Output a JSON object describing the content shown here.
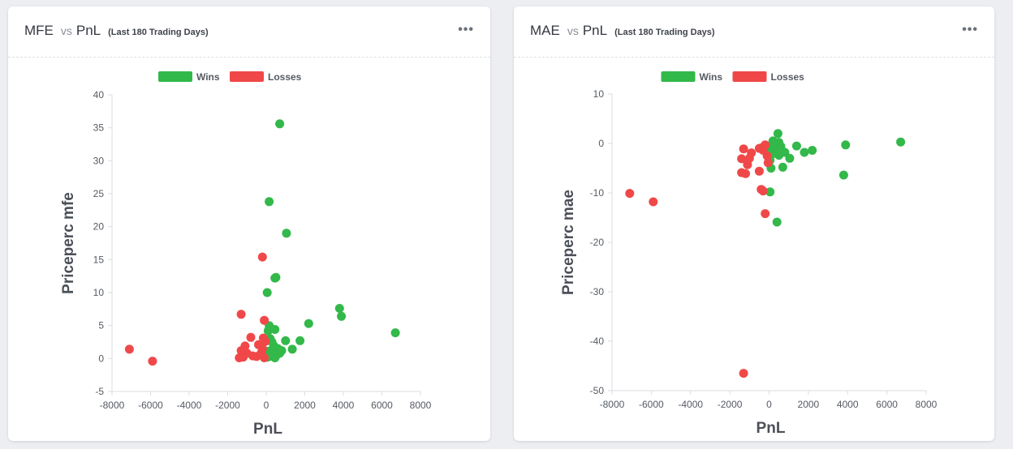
{
  "charts": [
    {
      "title_left": "MFE",
      "title_vs": "vs",
      "title_right": "PnL",
      "subtitle": "(Last 180 Trading Days)",
      "menu_icon": "ellipsis-icon"
    },
    {
      "title_left": "MAE",
      "title_vs": "vs",
      "title_right": "PnL",
      "subtitle": "(Last 180 Trading Days)",
      "menu_icon": "ellipsis-icon"
    }
  ],
  "colors": {
    "wins": "#33b84a",
    "losses": "#f04848",
    "axis": "#dadde1",
    "text": "#555a63"
  },
  "chart_data": [
    {
      "type": "scatter",
      "title": "MFE vs PnL",
      "xlabel": "PnL",
      "ylabel": "Priceperc mfe",
      "xlim": [
        -8000,
        8000
      ],
      "ylim": [
        -5,
        40
      ],
      "xticks": [
        -8000,
        -6000,
        -4000,
        -2000,
        0,
        2000,
        4000,
        6000,
        8000
      ],
      "yticks": [
        -5,
        0,
        5,
        10,
        15,
        20,
        25,
        30,
        35,
        40
      ],
      "grid": false,
      "legend_position": "top-center",
      "series": [
        {
          "name": "Wins",
          "points": [
            [
              700,
              35.6
            ],
            [
              150,
              23.8
            ],
            [
              1050,
              19.0
            ],
            [
              450,
              12.2
            ],
            [
              500,
              12.3
            ],
            [
              50,
              10.0
            ],
            [
              3800,
              7.6
            ],
            [
              3900,
              6.4
            ],
            [
              6700,
              3.9
            ],
            [
              2200,
              5.3
            ],
            [
              150,
              5.0
            ],
            [
              100,
              4.2
            ],
            [
              450,
              4.4
            ],
            [
              1000,
              2.7
            ],
            [
              1750,
              2.7
            ],
            [
              1350,
              1.4
            ],
            [
              800,
              1.2
            ],
            [
              600,
              1.5
            ],
            [
              400,
              1.9
            ],
            [
              300,
              2.5
            ],
            [
              200,
              3.0
            ],
            [
              250,
              0.6
            ],
            [
              350,
              0.9
            ],
            [
              150,
              0.3
            ],
            [
              500,
              0.4
            ],
            [
              700,
              0.8
            ],
            [
              100,
              1.1
            ],
            [
              50,
              0.2
            ],
            [
              300,
              1.3
            ],
            [
              450,
              0.1
            ]
          ]
        },
        {
          "name": "Losses",
          "points": [
            [
              -7100,
              1.4
            ],
            [
              -5900,
              -0.4
            ],
            [
              -1300,
              6.7
            ],
            [
              -200,
              15.4
            ],
            [
              -100,
              5.8
            ],
            [
              -800,
              3.2
            ],
            [
              -1100,
              1.9
            ],
            [
              -1300,
              1.2
            ],
            [
              -1000,
              0.8
            ],
            [
              -1400,
              0.1
            ],
            [
              -1200,
              0.2
            ],
            [
              -700,
              0.4
            ],
            [
              -500,
              0.3
            ],
            [
              -300,
              0.6
            ],
            [
              -400,
              2.1
            ],
            [
              -200,
              1.5
            ],
            [
              -150,
              3.1
            ],
            [
              -50,
              2.6
            ],
            [
              -100,
              0.1
            ],
            [
              -250,
              0.9
            ]
          ]
        }
      ]
    },
    {
      "type": "scatter",
      "title": "MAE vs PnL",
      "xlabel": "PnL",
      "ylabel": "Priceperc mae",
      "xlim": [
        -8000,
        8000
      ],
      "ylim": [
        -50,
        10
      ],
      "xticks": [
        -8000,
        -6000,
        -4000,
        -2000,
        0,
        2000,
        4000,
        6000,
        8000
      ],
      "yticks": [
        -50,
        -40,
        -30,
        -20,
        -10,
        0,
        10
      ],
      "grid": false,
      "legend_position": "top-center",
      "series": [
        {
          "name": "Wins",
          "points": [
            [
              6700,
              0.3
            ],
            [
              3900,
              -0.3
            ],
            [
              3800,
              -6.4
            ],
            [
              2200,
              -1.4
            ],
            [
              1800,
              -1.8
            ],
            [
              1400,
              -0.5
            ],
            [
              1050,
              -3.0
            ],
            [
              800,
              -1.8
            ],
            [
              700,
              -4.8
            ],
            [
              500,
              -2.4
            ],
            [
              450,
              2.0
            ],
            [
              400,
              -15.9
            ],
            [
              300,
              -0.7
            ],
            [
              200,
              0.5
            ],
            [
              150,
              -0.2
            ],
            [
              100,
              -1.3
            ],
            [
              100,
              -5.0
            ],
            [
              50,
              -9.8
            ],
            [
              50,
              -3.4
            ],
            [
              600,
              -0.6
            ],
            [
              350,
              -1.2
            ],
            [
              250,
              -2.0
            ],
            [
              150,
              -0.9
            ],
            [
              500,
              0.2
            ]
          ]
        },
        {
          "name": "Losses",
          "points": [
            [
              -7100,
              -10.1
            ],
            [
              -5900,
              -11.8
            ],
            [
              -1300,
              -46.5
            ],
            [
              -1400,
              -5.9
            ],
            [
              -1200,
              -6.1
            ],
            [
              -1400,
              -3.1
            ],
            [
              -1300,
              -1.1
            ],
            [
              -1000,
              -3.0
            ],
            [
              -900,
              -1.9
            ],
            [
              -1100,
              -4.3
            ],
            [
              -500,
              -5.6
            ],
            [
              -400,
              -9.3
            ],
            [
              -300,
              -9.6
            ],
            [
              -200,
              -14.2
            ],
            [
              -500,
              -1.0
            ],
            [
              -300,
              -1.4
            ],
            [
              -200,
              -0.3
            ],
            [
              -100,
              -2.5
            ],
            [
              -400,
              -0.9
            ],
            [
              -50,
              -3.9
            ]
          ]
        }
      ]
    }
  ]
}
